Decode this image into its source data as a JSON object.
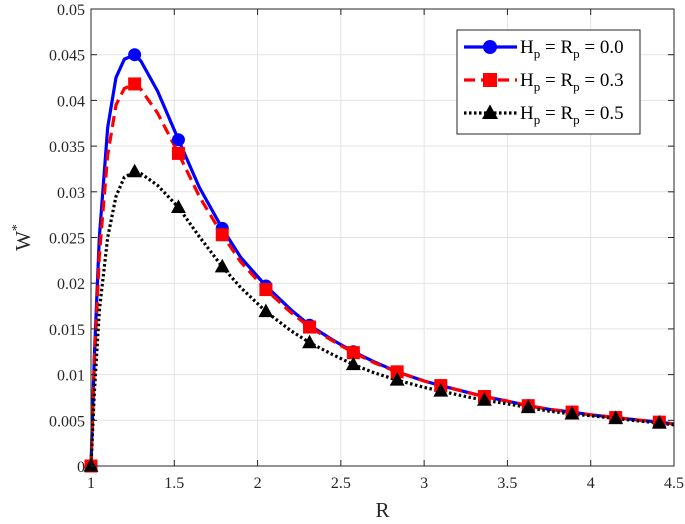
{
  "chart_data": {
    "type": "line",
    "title": "",
    "xlabel": "R",
    "ylabel": "W*",
    "ylabel_base": "W",
    "ylabel_sup": "*",
    "xlim": [
      1,
      4.5
    ],
    "ylim": [
      0,
      0.05
    ],
    "grid": true,
    "legend_position": "top-right",
    "x_ticks": [
      "1",
      "1.5",
      "2",
      "2.5",
      "3",
      "3.5",
      "4",
      "4.5"
    ],
    "y_ticks": [
      "0",
      "0.005",
      "0.01",
      "0.015",
      "0.02",
      "0.025",
      "0.03",
      "0.035",
      "0.04",
      "0.045",
      "0.05"
    ],
    "marker_x": [
      1.0,
      1.262,
      1.525,
      1.788,
      2.05,
      2.312,
      2.575,
      2.838,
      3.1,
      3.362,
      3.625,
      3.888,
      4.15,
      4.412
    ],
    "series": [
      {
        "name": "Hp = Rp = 0.0",
        "legend": {
          "h": "H",
          "sub1": "p",
          "mid": " = R",
          "sub2": "p",
          "tail": " = 0.0"
        },
        "color": "#0000ff",
        "line_style": "solid",
        "marker": "circle",
        "x": [
          1.0,
          1.02,
          1.05,
          1.1,
          1.15,
          1.2,
          1.262,
          1.3,
          1.4,
          1.525,
          1.65,
          1.788,
          1.9,
          2.05,
          2.2,
          2.312,
          2.45,
          2.575,
          2.7,
          2.838,
          3.0,
          3.1,
          3.25,
          3.362,
          3.5,
          3.625,
          3.75,
          3.888,
          4.0,
          4.15,
          4.3,
          4.412,
          4.5
        ],
        "y": [
          0.0,
          0.012,
          0.025,
          0.037,
          0.0425,
          0.0445,
          0.045,
          0.0443,
          0.041,
          0.0357,
          0.0305,
          0.026,
          0.0228,
          0.0197,
          0.0171,
          0.0154,
          0.0138,
          0.0125,
          0.0114,
          0.0103,
          0.0093,
          0.0088,
          0.0081,
          0.0076,
          0.0071,
          0.0066,
          0.0062,
          0.0059,
          0.0056,
          0.0053,
          0.005,
          0.0048,
          0.0046
        ]
      },
      {
        "name": "Hp = Rp = 0.3",
        "legend": {
          "h": "H",
          "sub1": "p",
          "mid": " = R",
          "sub2": "p",
          "tail": " = 0.3"
        },
        "color": "#ff0000",
        "line_style": "dashed",
        "marker": "square",
        "x": [
          1.0,
          1.02,
          1.05,
          1.1,
          1.15,
          1.2,
          1.262,
          1.3,
          1.4,
          1.525,
          1.65,
          1.788,
          1.9,
          2.05,
          2.2,
          2.312,
          2.45,
          2.575,
          2.7,
          2.838,
          3.0,
          3.1,
          3.25,
          3.362,
          3.5,
          3.625,
          3.75,
          3.888,
          4.0,
          4.15,
          4.3,
          4.412,
          4.5
        ],
        "y": [
          0.0,
          0.011,
          0.023,
          0.034,
          0.0395,
          0.0413,
          0.0418,
          0.0412,
          0.0386,
          0.0342,
          0.0295,
          0.0253,
          0.0223,
          0.0193,
          0.0168,
          0.0152,
          0.0137,
          0.0124,
          0.0113,
          0.0103,
          0.0093,
          0.0088,
          0.0081,
          0.0076,
          0.0071,
          0.0066,
          0.0062,
          0.0059,
          0.0056,
          0.0053,
          0.005,
          0.0048,
          0.0046
        ]
      },
      {
        "name": "Hp = Rp = 0.5",
        "legend": {
          "h": "H",
          "sub1": "p",
          "mid": " = R",
          "sub2": "p",
          "tail": " = 0.5"
        },
        "color": "#000000",
        "line_style": "dotted",
        "marker": "triangle",
        "x": [
          1.0,
          1.02,
          1.05,
          1.1,
          1.15,
          1.2,
          1.262,
          1.3,
          1.4,
          1.525,
          1.65,
          1.788,
          1.9,
          2.05,
          2.2,
          2.312,
          2.45,
          2.575,
          2.7,
          2.838,
          3.0,
          3.1,
          3.25,
          3.362,
          3.5,
          3.625,
          3.75,
          3.888,
          4.0,
          4.15,
          4.3,
          4.412,
          4.5
        ],
        "y": [
          0.0,
          0.008,
          0.017,
          0.025,
          0.0295,
          0.0316,
          0.0322,
          0.032,
          0.0307,
          0.0283,
          0.0251,
          0.0218,
          0.0195,
          0.0169,
          0.0148,
          0.0135,
          0.0122,
          0.0111,
          0.0102,
          0.0094,
          0.0086,
          0.0082,
          0.0076,
          0.0072,
          0.0068,
          0.0064,
          0.006,
          0.0057,
          0.0055,
          0.0052,
          0.0049,
          0.0047,
          0.0045
        ]
      }
    ]
  }
}
